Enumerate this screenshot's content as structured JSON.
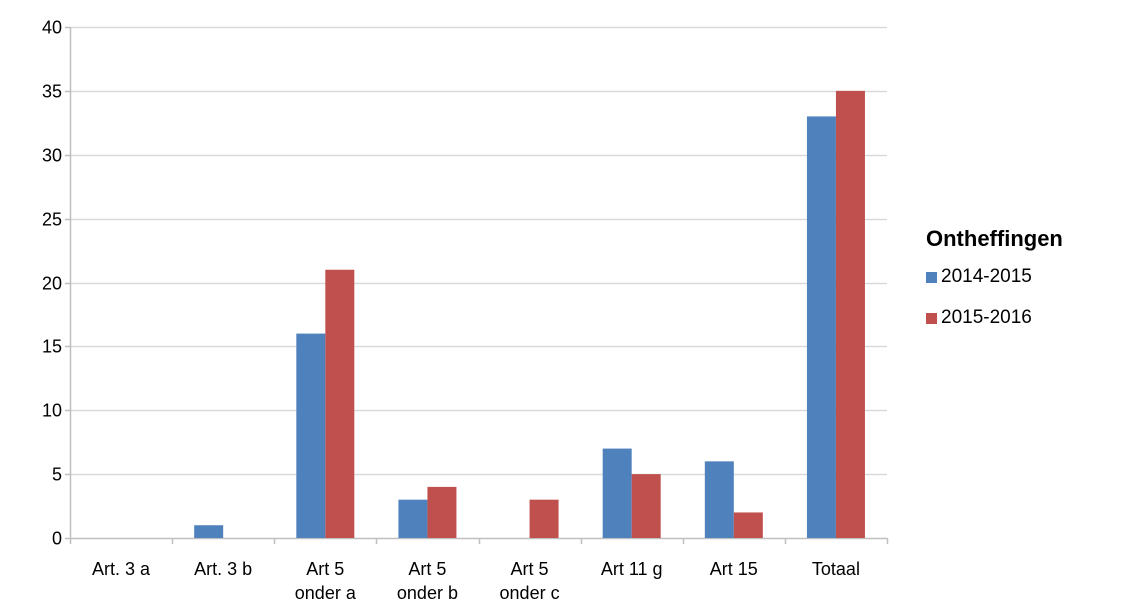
{
  "chart_data": {
    "type": "bar",
    "title": "",
    "xlabel": "",
    "ylabel": "",
    "ylim": [
      0,
      40
    ],
    "yticks": [
      "0",
      "5",
      "10",
      "15",
      "20",
      "25",
      "30",
      "35",
      "40"
    ],
    "grid": true,
    "legend_position": "right",
    "legend_title": "Ontheffingen",
    "categories": [
      [
        "Art. 3 a"
      ],
      [
        "Art. 3 b"
      ],
      [
        "Art 5",
        "onder a"
      ],
      [
        "Art 5",
        "onder b"
      ],
      [
        "Art 5",
        "onder c"
      ],
      [
        "Art 11 g"
      ],
      [
        "Art 15"
      ],
      [
        "Totaal"
      ]
    ],
    "series": [
      {
        "name": "2014-2015",
        "color": "#4f81bd",
        "values": [
          0,
          1,
          16,
          3,
          0,
          7,
          6,
          33
        ]
      },
      {
        "name": "2015-2016",
        "color": "#c0504d",
        "values": [
          0,
          0,
          21,
          4,
          3,
          5,
          2,
          35
        ]
      }
    ]
  }
}
